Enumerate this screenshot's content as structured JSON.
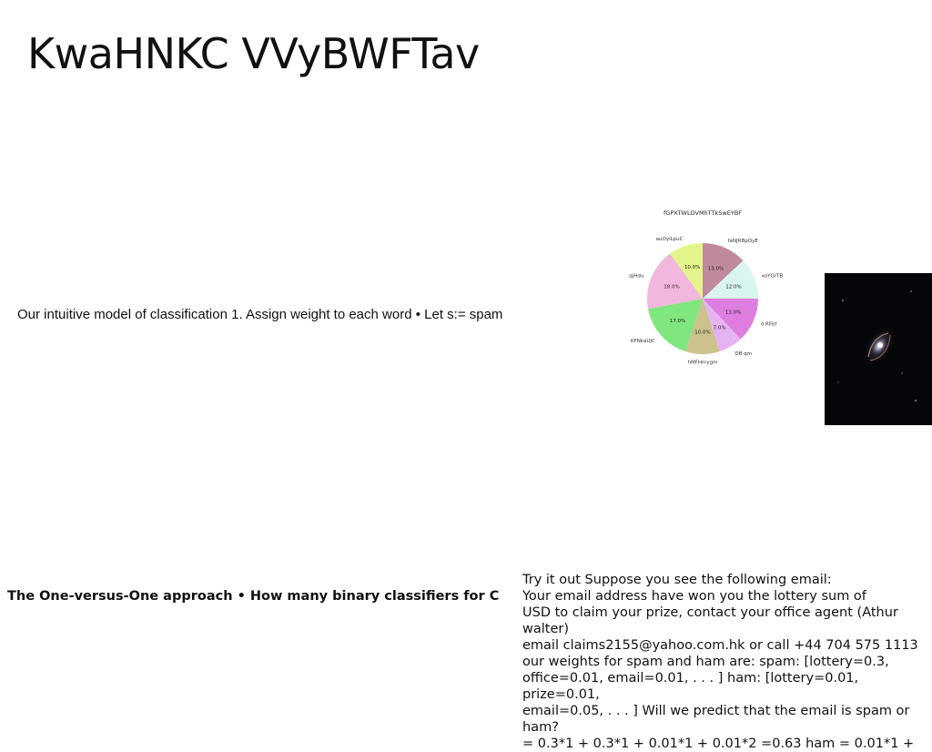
{
  "slide": {
    "title": "KwaHNKC VVyBWFTav",
    "middle_text": "Our intuitive model of classification 1. Assign weight to each word • Let s:= spam",
    "bold_text": "The One-versus-One approach • How many binary classifiers for C",
    "right_text": "Try it out Suppose you see the following email:\nYour email address have won you the lottery sum of\nUSD to claim your prize, contact your office agent (Athur walter)\nemail claims2155@yahoo.com.hk or call +44 704 575 1113\nour weights for spam and ham are: spam: [lottery=0.3,\noffice=0.01, email=0.01, . . . ] ham: [lottery=0.01, prize=0.01,\nemail=0.05, . . . ] Will we predict that the email is spam or ham?\n= 0.3*1 + 0.3*1 + 0.01*1 + 0.01*2 =0.63 ham = 0.01*1 +"
  },
  "image": {
    "name": "spiral-galaxy-photo"
  },
  "chart_data": {
    "type": "pie",
    "title": "fGPXTWLDVMhTTkSwEYBF",
    "slices": [
      {
        "label": "faNJRBpOyE",
        "value": 13.0,
        "color": "#c08a9e"
      },
      {
        "label": "xoYGrTB",
        "value": 12.0,
        "color": "#d8f5ef"
      },
      {
        "label": "d RFbf",
        "value": 13.0,
        "color": "#de7fe0"
      },
      {
        "label": "DB qm",
        "value": 7.0,
        "color": "#e6b3f2"
      },
      {
        "label": "hMFHmygm",
        "value": 10.0,
        "color": "#cbc28e"
      },
      {
        "label": "KFNkaUJC",
        "value": 17.0,
        "color": "#80e67e"
      },
      {
        "label": "qjHdu",
        "value": 18.0,
        "color": "#f2b7dc"
      },
      {
        "label": "auOyiLpuC",
        "value": 10.0,
        "color": "#e3f58a"
      }
    ]
  }
}
